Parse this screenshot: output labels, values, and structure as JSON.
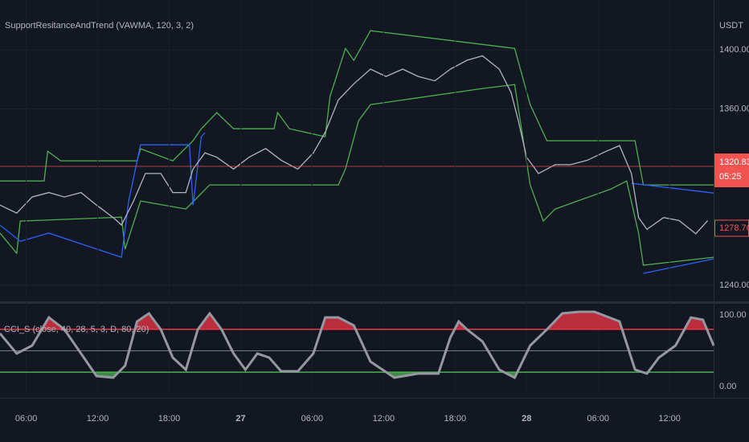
{
  "chart_data": [
    {
      "type": "line",
      "title": "SupportResitanceAndTrend (VAWMA, 120, 3, 2)",
      "y_unit": "USDT",
      "xlim": [
        3.8,
        63.7
      ],
      "ylim": [
        1229,
        1434
      ],
      "yticks": [
        {
          "value": 1400,
          "label": "1400.00"
        },
        {
          "value": 1360,
          "label": "1360.00"
        },
        {
          "value": 1240,
          "label": "1240.00"
        }
      ],
      "grid": true,
      "last_price": 1320.83,
      "last_price_color": "#f05350",
      "countdown": "05:25",
      "marker_price": 1278.76,
      "series": [
        {
          "color": "#4caf50",
          "x": [
            3.8,
            7.5,
            7.8,
            8.9,
            15.3,
            15.6,
            18.3,
            20.0,
            20.7,
            22.0,
            23.4,
            26.8,
            27.1,
            28.1,
            31.1,
            31.5,
            32.8,
            33.5,
            34.9,
            47.0,
            48.3,
            49.7,
            57.1,
            57.8,
            63.7
          ],
          "values": [
            1310.9,
            1310.9,
            1331.1,
            1324.6,
            1324.6,
            1332.8,
            1324.6,
            1338.3,
            1346.4,
            1357.4,
            1346.4,
            1346.4,
            1357.4,
            1346.4,
            1341.0,
            1368.3,
            1401.1,
            1392.9,
            1413.1,
            1401.1,
            1362.8,
            1338.3,
            1338.3,
            1308.2,
            1308.2
          ]
        },
        {
          "color": "#4caf50",
          "x": [
            3.8,
            5.2,
            5.5,
            14.0,
            14.3,
            15.6,
            19.4,
            21.4,
            32.2,
            32.8,
            33.9,
            34.9,
            44.3,
            47.0,
            48.3,
            49.4,
            50.4,
            55.1,
            56.4,
            57.4,
            57.8,
            63.7
          ],
          "values": [
            1275.4,
            1261.7,
            1283.6,
            1286.3,
            1264.5,
            1297.3,
            1291.8,
            1308.2,
            1308.2,
            1319.1,
            1351.9,
            1362.8,
            1373.8,
            1376.5,
            1308.2,
            1283.6,
            1291.8,
            1305.5,
            1310.9,
            1275.4,
            1253.6,
            1259.0
          ]
        },
        {
          "color": "#2962ff",
          "x": [
            3.8,
            5.5,
            7.9,
            14.0,
            14.6,
            15.6,
            19.7,
            20.0,
            20.7,
            21.0,
            null,
            56.8,
            63.7
          ],
          "values": [
            1280.9,
            1269.9,
            1275.4,
            1259.0,
            1297.3,
            1335.5,
            1335.5,
            1294.5,
            1341.0,
            1343.7,
            null,
            1309.3,
            1302.7
          ]
        },
        {
          "color": "#2962ff",
          "x": [
            57.8,
            63.7
          ],
          "values": [
            1248.1,
            1257.9
          ]
        },
        {
          "color": "#b2b5be",
          "x": [
            3.8,
            5.2,
            6.5,
            7.9,
            9.2,
            10.6,
            11.9,
            13.3,
            14.0,
            15.0,
            16.0,
            17.3,
            18.3,
            19.4,
            20.0,
            21.0,
            22.0,
            23.4,
            24.7,
            26.1,
            27.4,
            28.8,
            30.1,
            31.1,
            32.2,
            33.5,
            34.9,
            36.2,
            37.6,
            38.9,
            40.3,
            41.6,
            43.0,
            44.3,
            45.7,
            46.7,
            47.3,
            48.0,
            49.0,
            50.4,
            51.7,
            53.1,
            54.4,
            55.8,
            56.8,
            57.4,
            58.1,
            59.5,
            60.8,
            62.2,
            63.2
          ],
          "values": [
            1294.5,
            1289,
            1300,
            1303,
            1300,
            1303,
            1294.5,
            1286,
            1281,
            1297,
            1316,
            1316,
            1303,
            1303,
            1319,
            1330,
            1327,
            1319,
            1327,
            1333,
            1325,
            1319,
            1330,
            1344,
            1366,
            1377,
            1387,
            1382,
            1387,
            1382,
            1379,
            1387,
            1393,
            1396,
            1387,
            1371,
            1352,
            1327,
            1316,
            1322,
            1322,
            1325,
            1330,
            1335,
            1316,
            1286,
            1278,
            1286,
            1284,
            1275,
            1284
          ]
        }
      ]
    },
    {
      "type": "oscillator",
      "title": "CCI_S (close, 40, 28, 5, 3, D, 80, 20)",
      "xlim": [
        3.8,
        63.7
      ],
      "ylim": [
        -12.4,
        115.7
      ],
      "yticks": [
        {
          "value": 100,
          "label": "100.00"
        },
        {
          "value": 0,
          "label": "0.00"
        }
      ],
      "xticks": [
        {
          "value": 6,
          "label": "06:00"
        },
        {
          "value": 12,
          "label": "12:00"
        },
        {
          "value": 18,
          "label": "18:00"
        },
        {
          "value": 24,
          "label": "27"
        },
        {
          "value": 30,
          "label": "06:00"
        },
        {
          "value": 36,
          "label": "12:00"
        },
        {
          "value": 42,
          "label": "18:00"
        },
        {
          "value": 48,
          "label": "28"
        },
        {
          "value": 54,
          "label": "06:00"
        },
        {
          "value": 60,
          "label": "12:00"
        }
      ],
      "upper_level": 80,
      "upper_color": "#f23645",
      "mid_level": 50,
      "mid_color": "#787b86",
      "lower_level": 20,
      "lower_color": "#4caf50",
      "series": [
        {
          "color": "#9598a1",
          "x": [
            3.8,
            5.2,
            6.5,
            7.9,
            9.2,
            10.6,
            11.9,
            13.3,
            14.3,
            15.3,
            16.3,
            17.3,
            18.3,
            19.4,
            20.4,
            21.4,
            22.4,
            23.4,
            24.4,
            25.4,
            26.4,
            27.4,
            28.8,
            30.1,
            31.1,
            32.2,
            33.5,
            34.9,
            36.9,
            38.9,
            40.6,
            41.6,
            42.3,
            43.0,
            44.3,
            45.7,
            47.0,
            48.3,
            49.7,
            51.0,
            52.4,
            53.7,
            55.8,
            57.1,
            58.1,
            59.1,
            60.5,
            61.8,
            62.8,
            63.7
          ],
          "values": [
            74.2,
            46.1,
            57.3,
            96.6,
            79.8,
            46.1,
            14.6,
            12.4,
            29.2,
            91.0,
            102.2,
            79.8,
            40.4,
            23.6,
            79.8,
            102.2,
            79.8,
            46.1,
            23.6,
            46.1,
            40.4,
            21.3,
            21.3,
            46.1,
            96.6,
            96.6,
            85.4,
            34.8,
            12.4,
            18.0,
            18.0,
            68.5,
            91.0,
            79.8,
            62.9,
            23.6,
            12.4,
            57.3,
            79.8,
            102.2,
            104.5,
            104.5,
            91.0,
            23.6,
            18.0,
            40.4,
            57.3,
            96.6,
            93.3,
            57.3
          ]
        }
      ]
    }
  ]
}
